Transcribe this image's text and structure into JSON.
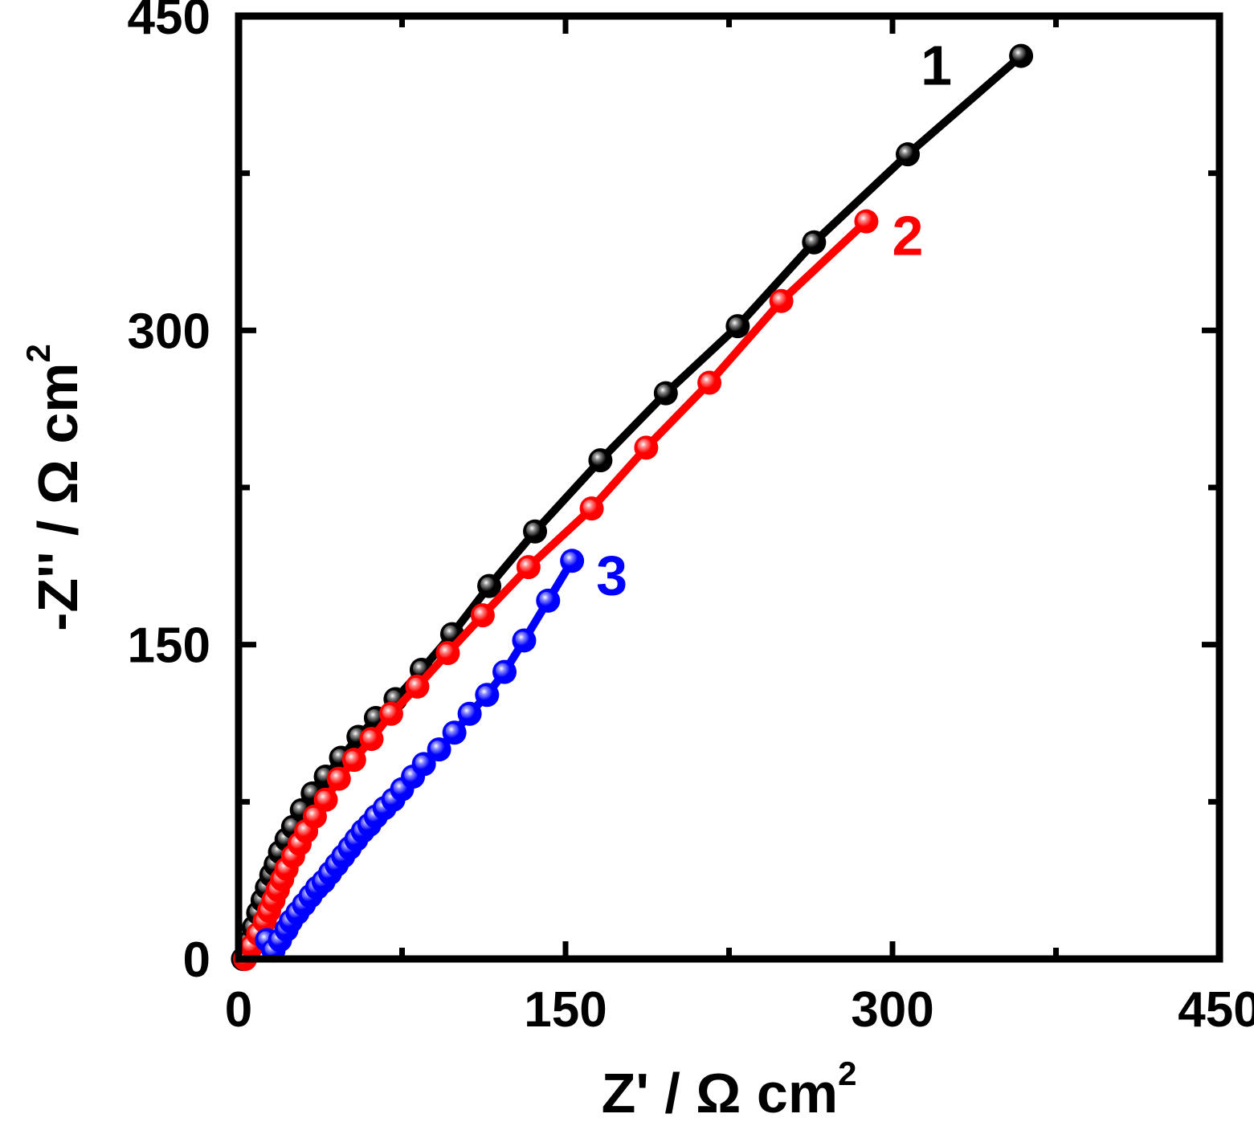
{
  "chart_data": {
    "type": "scatter",
    "title": "",
    "xlabel": "Z' / Ω cm",
    "xlabel_sup": "2",
    "ylabel": "-Z'' / Ω cm",
    "ylabel_sup": "2",
    "xlim": [
      0,
      450
    ],
    "ylim": [
      0,
      450
    ],
    "xticks": [
      "0",
      "150",
      "300",
      "450"
    ],
    "yticks": [
      "0",
      "150",
      "300",
      "450"
    ],
    "grid": false,
    "legend": "none",
    "series": [
      {
        "label": "1",
        "color": "#000000",
        "x": [
          2,
          5,
          7,
          9,
          11,
          13,
          15,
          17,
          19,
          22,
          25,
          29,
          34,
          40,
          47,
          55,
          63,
          72,
          84,
          98,
          115,
          136,
          166,
          196,
          229,
          264,
          307,
          359
        ],
        "y": [
          0,
          8,
          15,
          22,
          28,
          34,
          40,
          45,
          51,
          57,
          63,
          71,
          79,
          87,
          96,
          106,
          115,
          124,
          138,
          155,
          178,
          204,
          238,
          270,
          302,
          342,
          384,
          431
        ]
      },
      {
        "label": "2",
        "color": "#ff0000",
        "x": [
          3,
          6,
          9,
          12,
          14,
          16,
          18,
          20,
          22,
          25,
          28,
          31,
          35,
          40,
          46,
          53,
          61,
          70,
          82,
          96,
          112,
          133,
          162,
          187,
          216,
          249,
          288
        ],
        "y": [
          0,
          6,
          12,
          18,
          23,
          28,
          33,
          38,
          43,
          49,
          55,
          61,
          68,
          76,
          86,
          95,
          105,
          117,
          130,
          146,
          164,
          187,
          215,
          244,
          275,
          314,
          352
        ]
      },
      {
        "label": "3",
        "color": "#0000ff",
        "x": [
          13,
          16,
          19,
          22,
          24,
          27,
          30,
          33,
          36,
          39,
          42,
          45,
          48,
          51,
          54,
          57,
          60,
          63,
          67,
          71,
          75,
          80,
          85,
          92,
          99,
          106,
          114,
          122,
          131,
          142,
          153
        ],
        "y": [
          9,
          4,
          9,
          14,
          18,
          22,
          26,
          30,
          34,
          37,
          41,
          45,
          49,
          53,
          57,
          61,
          64,
          68,
          72,
          76,
          81,
          87,
          93,
          100,
          108,
          117,
          126,
          137,
          152,
          171,
          190
        ]
      }
    ]
  }
}
